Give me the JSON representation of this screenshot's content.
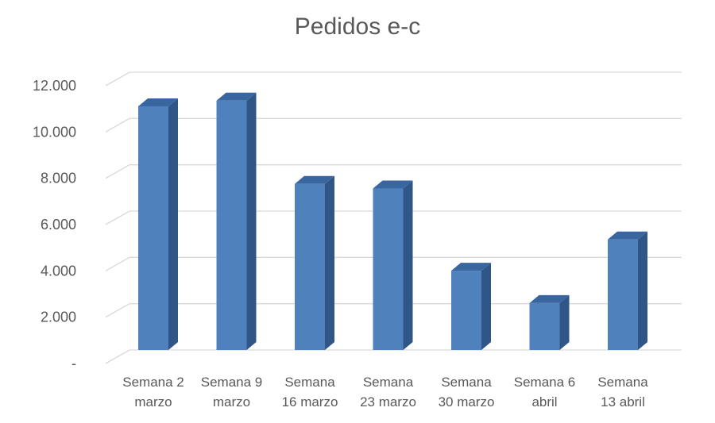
{
  "chart_data": {
    "type": "bar",
    "title": "Pedidos e-c",
    "xlabel": "",
    "ylabel": "",
    "categories": [
      [
        "Semana 2",
        "marzo"
      ],
      [
        "Semana 9",
        "marzo"
      ],
      [
        "Semana",
        "16 marzo"
      ],
      [
        "Semana",
        "23 marzo"
      ],
      [
        "Semana",
        "30 marzo"
      ],
      [
        "Semana 6",
        "abril"
      ],
      [
        "Semana",
        "13 abril"
      ]
    ],
    "values": [
      10800,
      11050,
      7450,
      7250,
      3700,
      2300,
      5050
    ],
    "ylim": [
      0,
      12000
    ],
    "yticks": [
      0,
      2000,
      4000,
      6000,
      8000,
      10000,
      12000
    ],
    "ytick_labels": [
      "-",
      "2.000",
      "4.000",
      "6.000",
      "8.000",
      "10.000",
      "12.000"
    ],
    "grid": true,
    "legend": "none",
    "colors": {
      "bar_front": "#4f81bd",
      "bar_side": "#2f5686",
      "bar_top": "#3a66a0",
      "grid": "#d9d9d9",
      "text": "#595959"
    }
  }
}
